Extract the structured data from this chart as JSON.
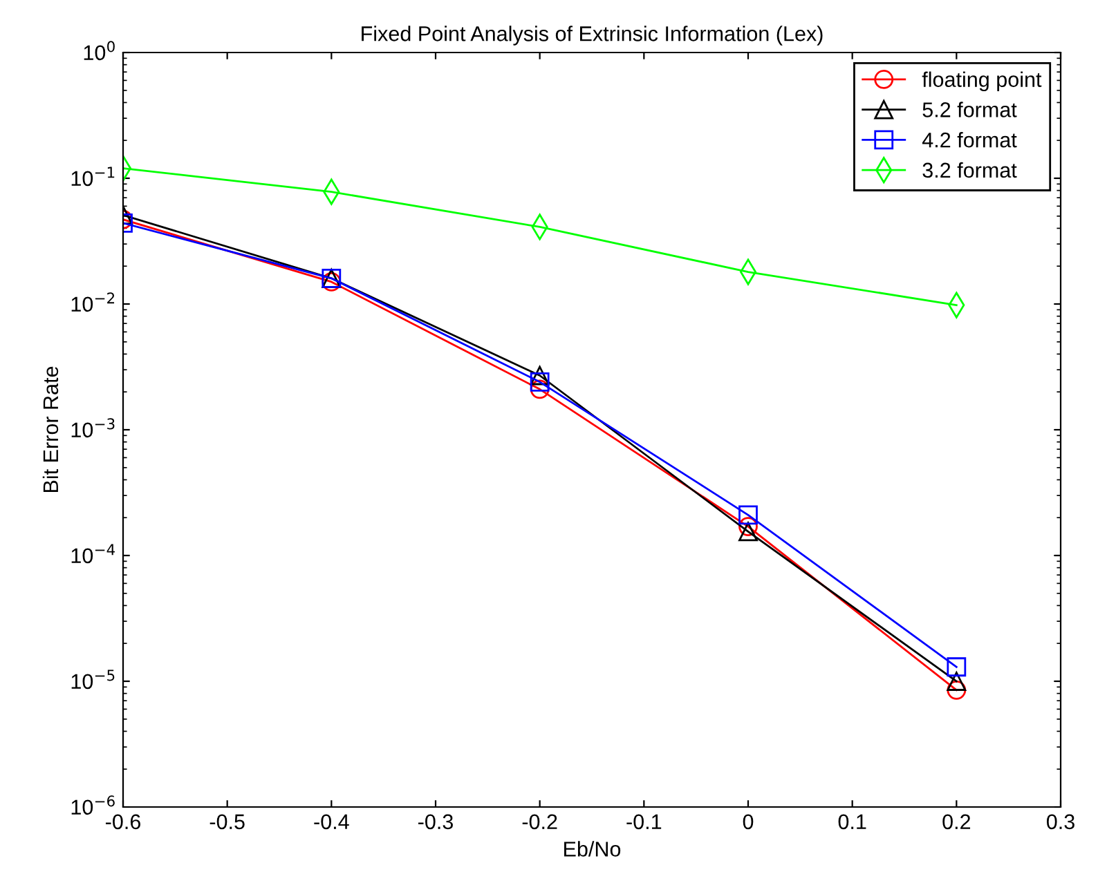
{
  "chart_data": {
    "type": "line",
    "title": "Fixed Point Analysis of Extrinsic Information (Lex)",
    "xlabel": "Eb/No",
    "ylabel": "Bit Error Rate",
    "x": [
      -0.6,
      -0.4,
      -0.2,
      0,
      0.2
    ],
    "series": [
      {
        "name": "floating point",
        "color": "#ff0000",
        "marker": "circle",
        "values": [
          0.047,
          0.015,
          0.0021,
          0.00017,
          8.5e-06
        ]
      },
      {
        "name": "5.2 format",
        "color": "#000000",
        "marker": "triangle",
        "values": [
          0.051,
          0.016,
          0.0027,
          0.000155,
          1e-05
        ]
      },
      {
        "name": "4.2 format",
        "color": "#0000ff",
        "marker": "square",
        "values": [
          0.044,
          0.016,
          0.0024,
          0.00021,
          1.3e-05
        ]
      },
      {
        "name": "3.2 format",
        "color": "#00ff00",
        "marker": "diamond",
        "values": [
          0.12,
          0.078,
          0.041,
          0.018,
          0.0098
        ]
      }
    ],
    "log": "y",
    "xlim": [
      -0.6,
      0.3
    ],
    "xticks": [
      -0.6,
      -0.5,
      -0.4,
      -0.3,
      -0.2,
      -0.1,
      0,
      0.1,
      0.2,
      0.3
    ],
    "ylim": [
      1e-06,
      1
    ],
    "yticks": [
      {
        "value": 1e-06,
        "label": "10$^{−6}$"
      },
      {
        "value": 1e-05,
        "label": "10$^{−5}$"
      },
      {
        "value": 0.0001,
        "label": "10$^{−4}$"
      },
      {
        "value": 0.001,
        "label": "10$^{−3}$"
      },
      {
        "value": 0.01,
        "label": "10$^{−2}$"
      },
      {
        "value": 0.1,
        "label": "10$^{−1}$"
      },
      {
        "value": 1,
        "label": "10$^{0}$"
      }
    ],
    "grid": false,
    "legend": "top right",
    "line_style": "solid"
  }
}
